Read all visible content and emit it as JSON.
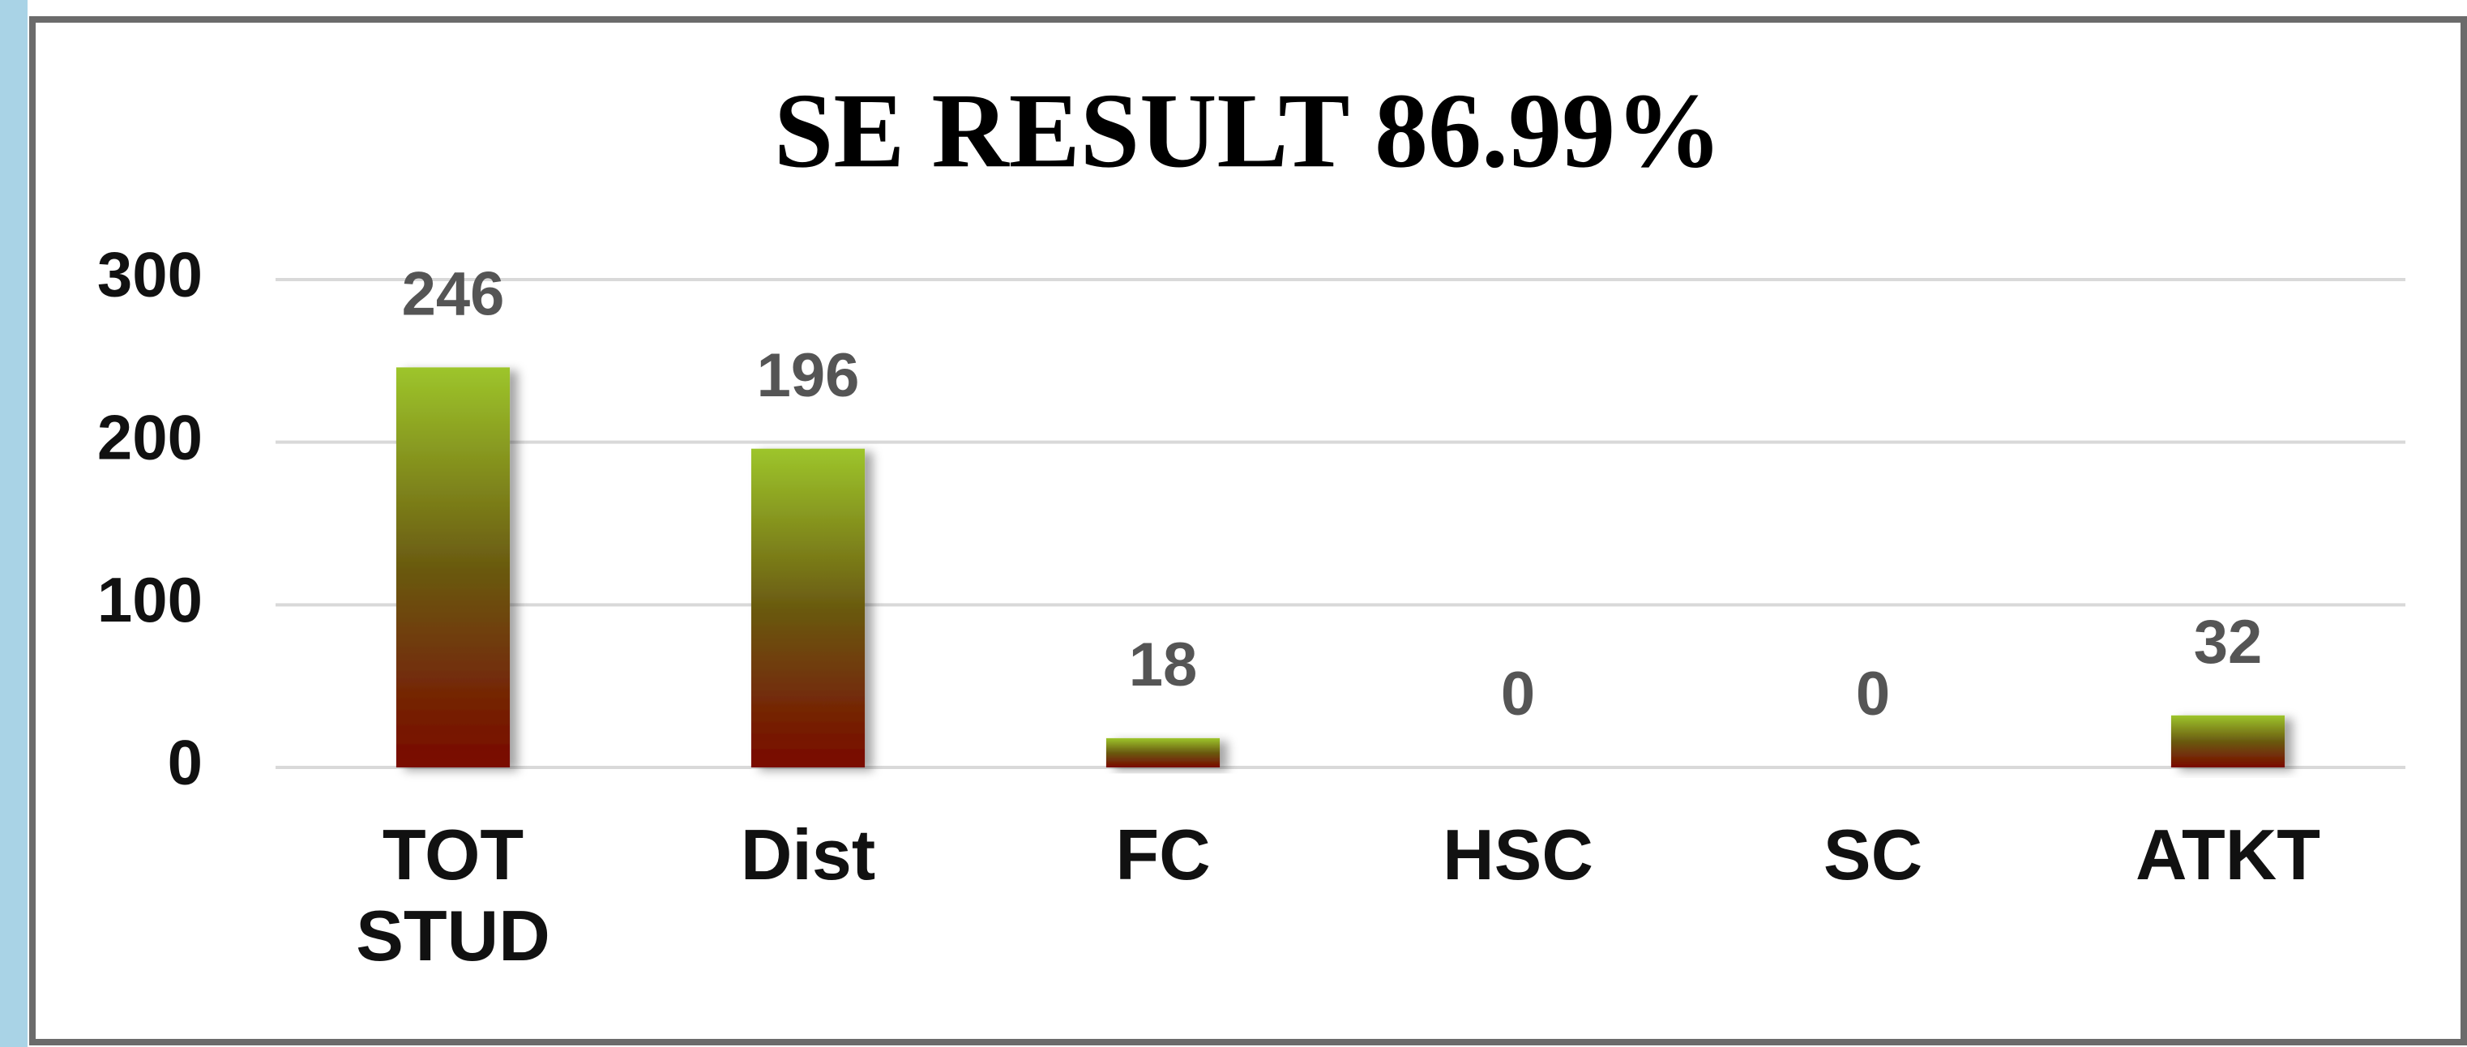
{
  "chart_data": {
    "type": "bar",
    "title": "SE RESULT 86.99%",
    "categories": [
      "TOT STUD",
      "Dist",
      "FC",
      "HSC",
      "SC",
      "ATKT"
    ],
    "values": [
      246,
      196,
      18,
      0,
      0,
      32
    ],
    "color": "#9bc22a",
    "ylim": [
      0,
      300
    ],
    "yticks": [
      0,
      100,
      200,
      300
    ],
    "grid": true
  }
}
